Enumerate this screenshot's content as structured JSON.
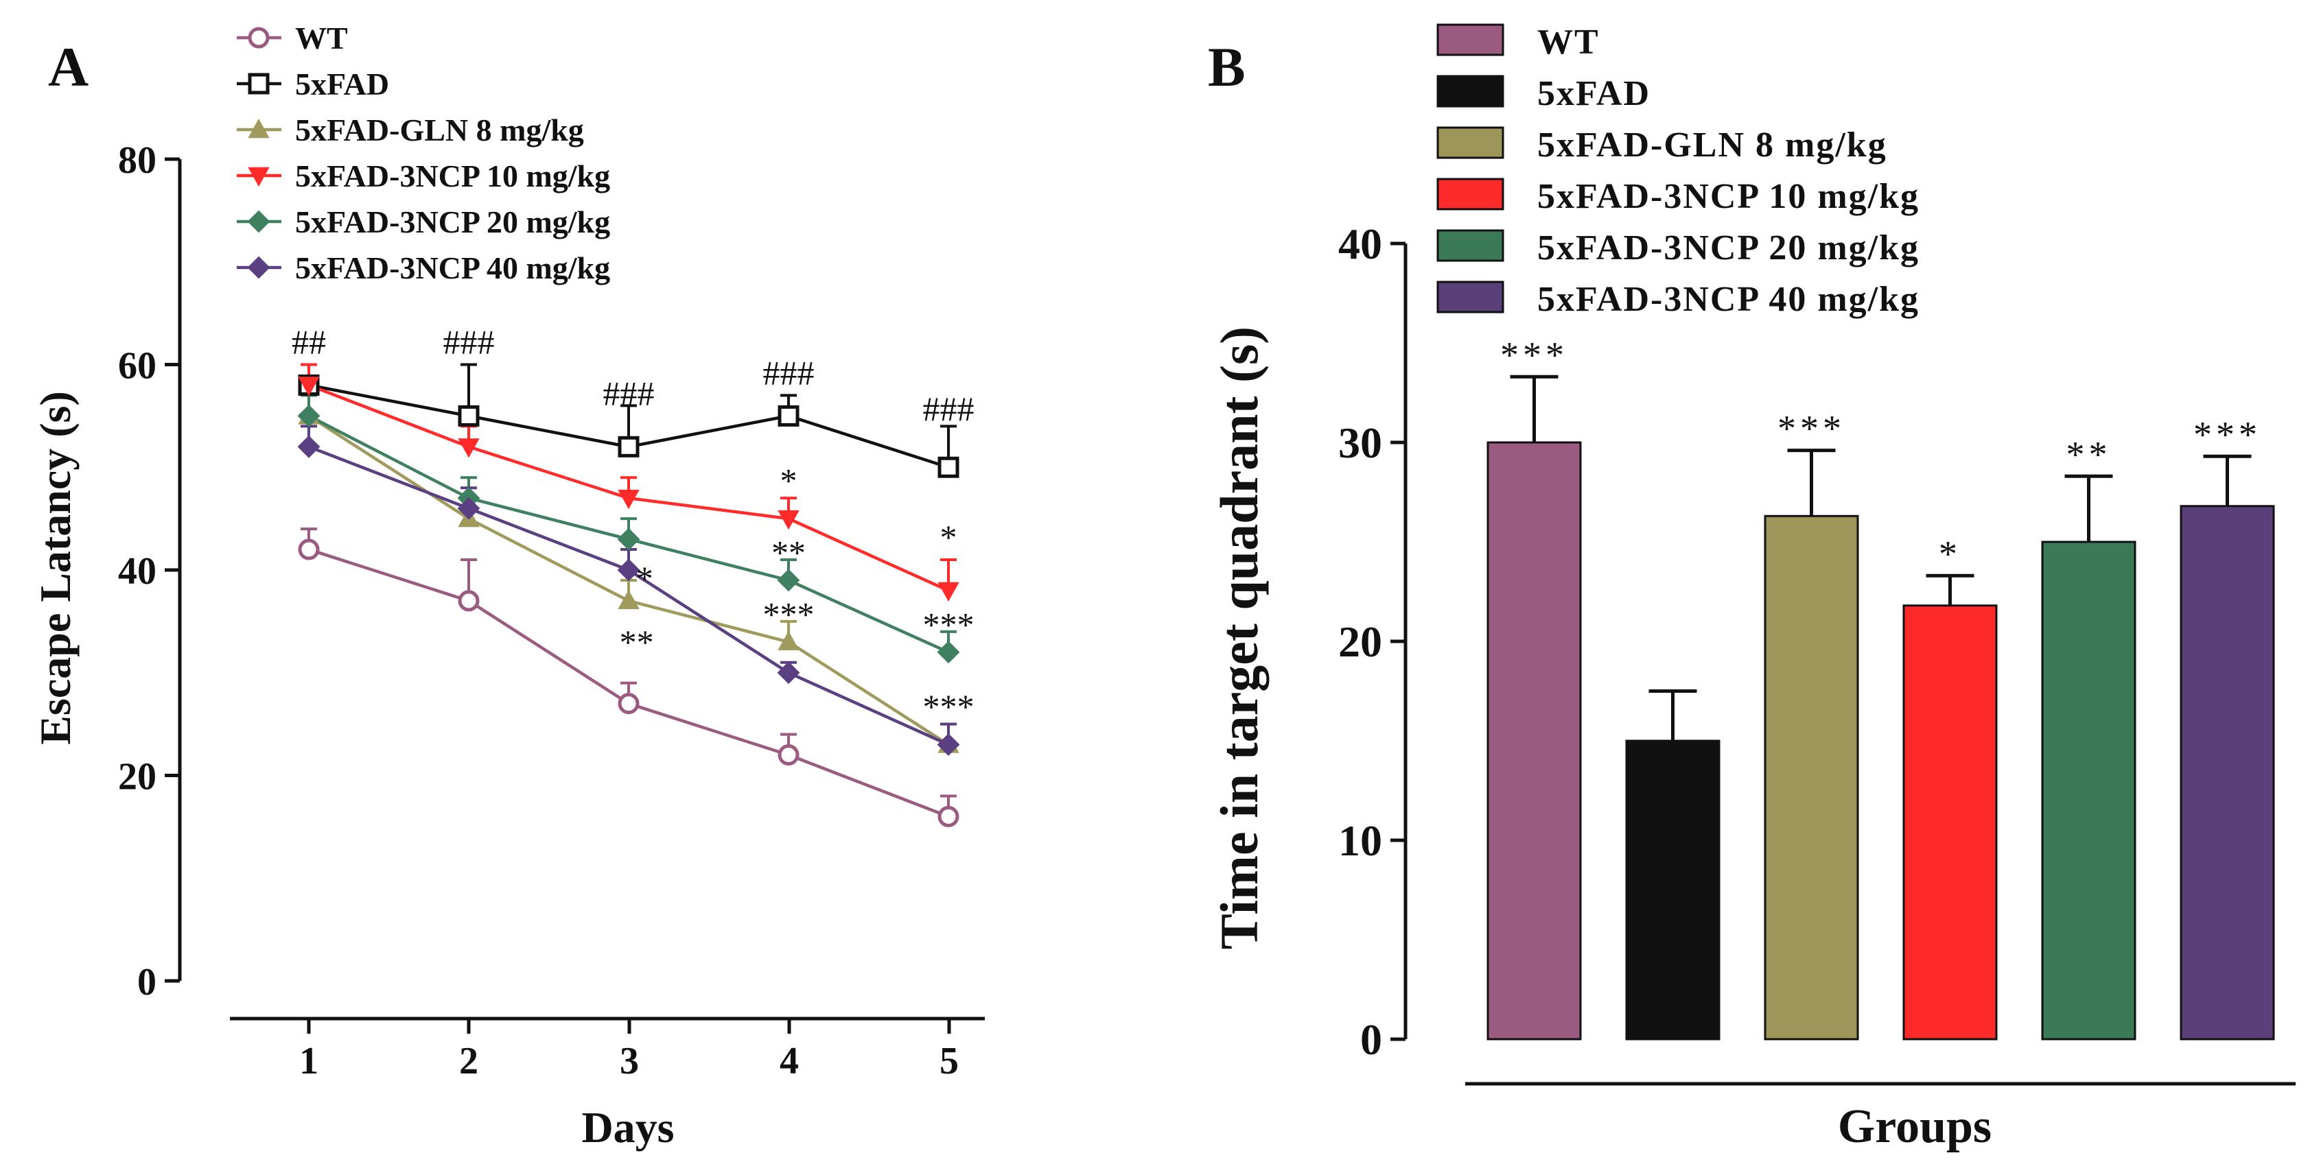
{
  "chart_data": [
    {
      "panel": "A",
      "type": "line",
      "xlabel": "Days",
      "ylabel": "Escape Latancy (s)",
      "x": [
        1,
        2,
        3,
        4,
        5
      ],
      "xticks": [
        "1",
        "2",
        "3",
        "4",
        "5"
      ],
      "ylim": [
        0,
        80
      ],
      "yticks": [
        "0",
        "20",
        "40",
        "60",
        "80"
      ],
      "series": [
        {
          "name": "WT",
          "color": "#9b5a7f",
          "marker": "circle-open",
          "values": [
            42,
            37,
            27,
            22,
            16
          ],
          "errors": [
            2,
            4,
            2,
            2,
            2
          ]
        },
        {
          "name": "5xFAD",
          "color": "#111111",
          "marker": "square-open",
          "values": [
            58,
            55,
            52,
            55,
            50
          ],
          "errors": [
            2,
            5,
            4,
            2,
            4
          ]
        },
        {
          "name": "5xFAD-GLN 8 mg/kg",
          "color": "#a09a5c",
          "marker": "triangle-up",
          "values": [
            55,
            45,
            37,
            33,
            23
          ],
          "errors": [
            2,
            2,
            2,
            2,
            2
          ]
        },
        {
          "name": "5xFAD-3NCP 10 mg/kg",
          "color": "#ff2a2a",
          "marker": "triangle-down",
          "values": [
            58,
            52,
            47,
            45,
            38
          ],
          "errors": [
            2,
            2,
            2,
            2,
            3
          ]
        },
        {
          "name": "5xFAD-3NCP 20 mg/kg",
          "color": "#3f8060",
          "marker": "diamond",
          "values": [
            55,
            47,
            43,
            39,
            32
          ],
          "errors": [
            2,
            2,
            2,
            2,
            2
          ]
        },
        {
          "name": "5xFAD-3NCP 40 mg/kg",
          "color": "#5a3f82",
          "marker": "diamond",
          "values": [
            52,
            46,
            40,
            30,
            23
          ],
          "errors": [
            2,
            2,
            2,
            1,
            2
          ]
        }
      ],
      "annotations": [
        {
          "x": 1,
          "y": 62,
          "text": "##"
        },
        {
          "x": 2,
          "y": 62,
          "text": "###"
        },
        {
          "x": 3,
          "y": 57,
          "text": "###"
        },
        {
          "x": 4,
          "y": 59,
          "text": "###"
        },
        {
          "x": 5,
          "y": 55.5,
          "text": "###"
        },
        {
          "x": 4,
          "y": 48.5,
          "text": "*"
        },
        {
          "x": 5,
          "y": 43,
          "text": "*"
        },
        {
          "x": 3.1,
          "y": 39,
          "text": "*"
        },
        {
          "x": 4,
          "y": 41.5,
          "text": "**"
        },
        {
          "x": 4,
          "y": 35.5,
          "text": "***"
        },
        {
          "x": 5,
          "y": 34.5,
          "text": "***"
        },
        {
          "x": 3.05,
          "y": 32.8,
          "text": "**"
        },
        {
          "x": 5,
          "y": 26.5,
          "text": "***"
        }
      ]
    },
    {
      "panel": "B",
      "type": "bar",
      "xlabel": "Groups",
      "ylabel": "Time in target quadrant (s)",
      "ylim": [
        0,
        40
      ],
      "yticks": [
        "0",
        "10",
        "20",
        "30",
        "40"
      ],
      "categories": [
        "WT",
        "5xFAD",
        "5xFAD-GLN 8 mg/kg",
        "5xFAD-3NCP 10 mg/kg",
        "5xFAD-3NCP 20 mg/kg",
        "5xFAD-3NCP 40 mg/kg"
      ],
      "values": [
        30,
        15,
        26.3,
        21.8,
        25,
        26.8
      ],
      "errors": [
        3.3,
        2.5,
        3.3,
        1.5,
        3.3,
        2.5
      ],
      "colors": [
        "#9b5a7f",
        "#111111",
        "#9e9558",
        "#ff2a2a",
        "#3b7a57",
        "#5b3f78"
      ],
      "significance": [
        "***",
        "",
        "***",
        "*",
        "**",
        "***"
      ]
    }
  ],
  "panel_labels": {
    "a": "A",
    "b": "B"
  }
}
